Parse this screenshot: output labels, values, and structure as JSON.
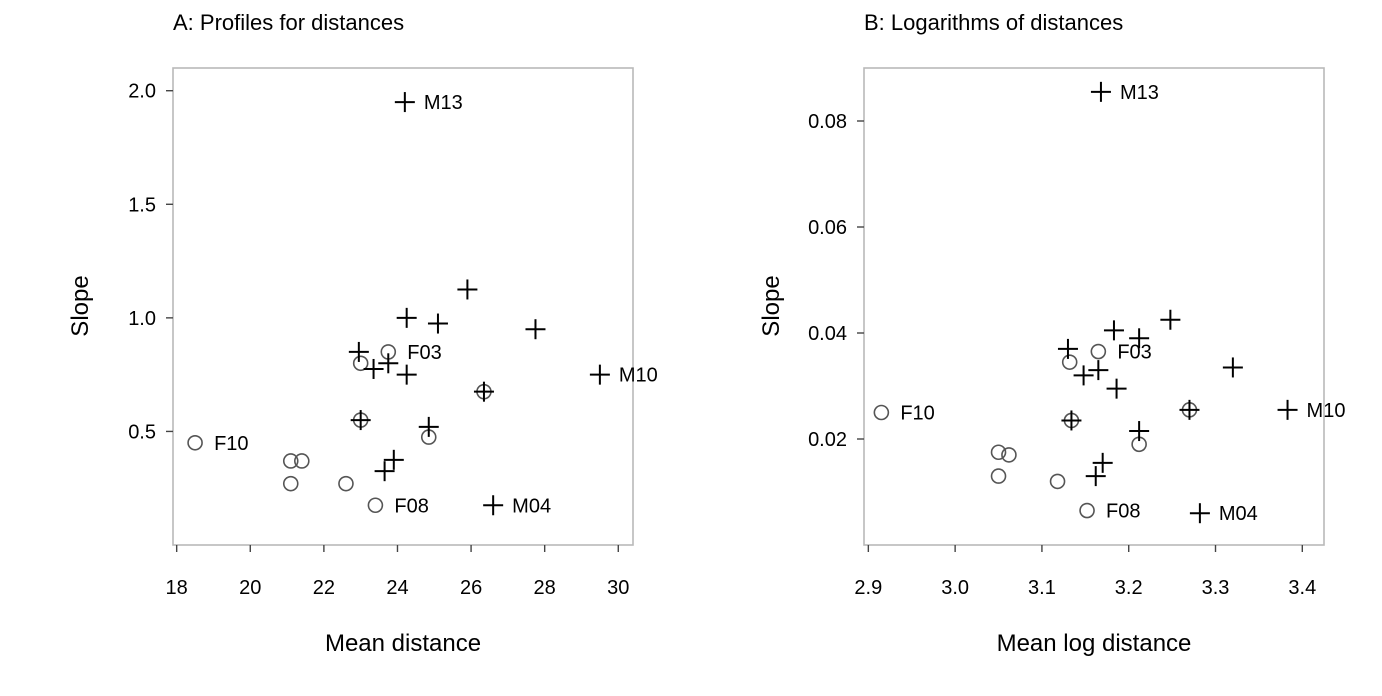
{
  "chart_data": [
    {
      "type": "scatter",
      "title": "A: Profiles for distances",
      "xlabel": "Mean distance",
      "ylabel": "Slope",
      "xlim": [
        17.9,
        30.4
      ],
      "ylim": [
        0.0,
        2.1
      ],
      "xticks": [
        18,
        20,
        22,
        24,
        26,
        28,
        30
      ],
      "yticks": [
        0.5,
        1.0,
        1.5,
        2.0
      ],
      "xtick_labels": [
        "18",
        "20",
        "22",
        "24",
        "26",
        "28",
        "30"
      ],
      "ytick_labels": [
        "0.5",
        "1.0",
        "1.5",
        "2.0"
      ],
      "series": [
        {
          "marker": "circle",
          "points": [
            {
              "x": 18.5,
              "y": 0.45,
              "label": "F10"
            },
            {
              "x": 21.1,
              "y": 0.37
            },
            {
              "x": 21.4,
              "y": 0.37
            },
            {
              "x": 21.1,
              "y": 0.27
            },
            {
              "x": 22.6,
              "y": 0.27
            },
            {
              "x": 23.4,
              "y": 0.175,
              "label": "F08"
            },
            {
              "x": 23.0,
              "y": 0.8
            },
            {
              "x": 23.75,
              "y": 0.85,
              "label": "F03"
            },
            {
              "x": 23.0,
              "y": 0.55
            },
            {
              "x": 24.85,
              "y": 0.475
            },
            {
              "x": 26.35,
              "y": 0.675
            }
          ]
        },
        {
          "marker": "plus",
          "points": [
            {
              "x": 24.2,
              "y": 1.95,
              "label": "M13"
            },
            {
              "x": 29.5,
              "y": 0.75,
              "label": "M10"
            },
            {
              "x": 26.6,
              "y": 0.175,
              "label": "M04"
            },
            {
              "x": 25.9,
              "y": 1.125
            },
            {
              "x": 24.25,
              "y": 1.0
            },
            {
              "x": 25.1,
              "y": 0.975
            },
            {
              "x": 27.75,
              "y": 0.95
            },
            {
              "x": 22.95,
              "y": 0.85
            },
            {
              "x": 23.75,
              "y": 0.8
            },
            {
              "x": 23.35,
              "y": 0.775
            },
            {
              "x": 24.25,
              "y": 0.75
            },
            {
              "x": 23.0,
              "y": 0.55
            },
            {
              "x": 24.85,
              "y": 0.52
            },
            {
              "x": 26.35,
              "y": 0.675
            },
            {
              "x": 23.9,
              "y": 0.375
            },
            {
              "x": 23.65,
              "y": 0.325
            }
          ]
        }
      ]
    },
    {
      "type": "scatter",
      "title": "B: Logarithms of distances",
      "xlabel": "Mean log distance",
      "ylabel": "Slope",
      "xlim": [
        2.895,
        3.425
      ],
      "ylim": [
        0.0,
        0.09
      ],
      "xticks": [
        2.9,
        3.0,
        3.1,
        3.2,
        3.3,
        3.4
      ],
      "yticks": [
        0.02,
        0.04,
        0.06,
        0.08
      ],
      "xtick_labels": [
        "2.9",
        "3.0",
        "3.1",
        "3.2",
        "3.3",
        "3.4"
      ],
      "ytick_labels": [
        "0.02",
        "0.04",
        "0.06",
        "0.08"
      ],
      "series": [
        {
          "marker": "circle",
          "points": [
            {
              "x": 2.915,
              "y": 0.025,
              "label": "F10"
            },
            {
              "x": 3.05,
              "y": 0.0175
            },
            {
              "x": 3.062,
              "y": 0.017
            },
            {
              "x": 3.05,
              "y": 0.013
            },
            {
              "x": 3.118,
              "y": 0.012
            },
            {
              "x": 3.152,
              "y": 0.0065,
              "label": "F08"
            },
            {
              "x": 3.132,
              "y": 0.0345
            },
            {
              "x": 3.165,
              "y": 0.0365,
              "label": "F03"
            },
            {
              "x": 3.134,
              "y": 0.0235
            },
            {
              "x": 3.212,
              "y": 0.019
            },
            {
              "x": 3.27,
              "y": 0.0255
            }
          ]
        },
        {
          "marker": "plus",
          "points": [
            {
              "x": 3.168,
              "y": 0.0855,
              "label": "M13"
            },
            {
              "x": 3.383,
              "y": 0.0255,
              "label": "M10"
            },
            {
              "x": 3.282,
              "y": 0.006,
              "label": "M04"
            },
            {
              "x": 3.248,
              "y": 0.0425
            },
            {
              "x": 3.183,
              "y": 0.0405
            },
            {
              "x": 3.212,
              "y": 0.039
            },
            {
              "x": 3.13,
              "y": 0.037
            },
            {
              "x": 3.32,
              "y": 0.0335
            },
            {
              "x": 3.148,
              "y": 0.032
            },
            {
              "x": 3.165,
              "y": 0.033
            },
            {
              "x": 3.186,
              "y": 0.0295
            },
            {
              "x": 3.134,
              "y": 0.0235
            },
            {
              "x": 3.212,
              "y": 0.0215
            },
            {
              "x": 3.27,
              "y": 0.0255
            },
            {
              "x": 3.17,
              "y": 0.0155
            },
            {
              "x": 3.162,
              "y": 0.013
            }
          ]
        }
      ]
    }
  ]
}
